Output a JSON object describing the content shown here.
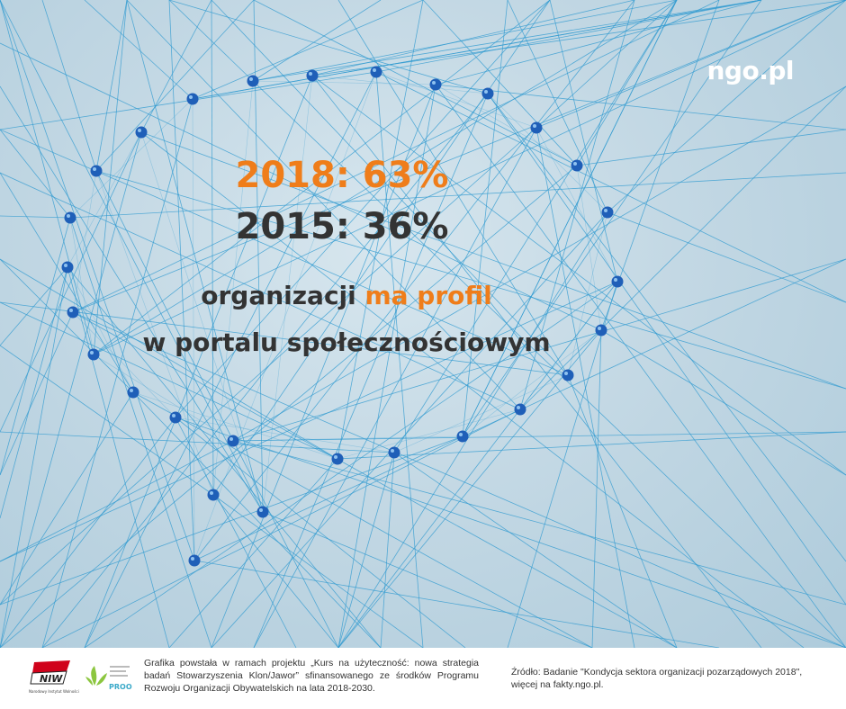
{
  "brand": "ngo.pl",
  "stats": {
    "line_2018": "2018: 63%",
    "line_2015": "2015: 36%",
    "year_2018": "2018",
    "pct_2018": 63,
    "year_2015": "2015",
    "pct_2015": 36
  },
  "caption": {
    "line1_prefix": "organizacji ",
    "line1_highlight": "ma profil",
    "line2": "w portalu społecznościowym"
  },
  "colors": {
    "accent": "#ef7d1a",
    "text": "#333333",
    "pin": "#1f5fb8",
    "thread": "#2f9ad0"
  },
  "footer": {
    "left_text": "Grafika powstała w ramach projektu „Kurs na użyteczność: nowa strategia badań Stowarzyszenia Klon/Jawor” sfinansowanego ze środków Programu Rozwoju Organizacji Obywatelskich na lata 2018-2030.",
    "right_text": "Źródło: Badanie \"Kondycja sektora organizacji pozarządowych 2018\", więcej na fakty.ngo.pl.",
    "logo_niw_text": "NIW",
    "logo_niw_caption": "Narodowy Instytut Wolności",
    "logo_proo_text": "PROO"
  }
}
